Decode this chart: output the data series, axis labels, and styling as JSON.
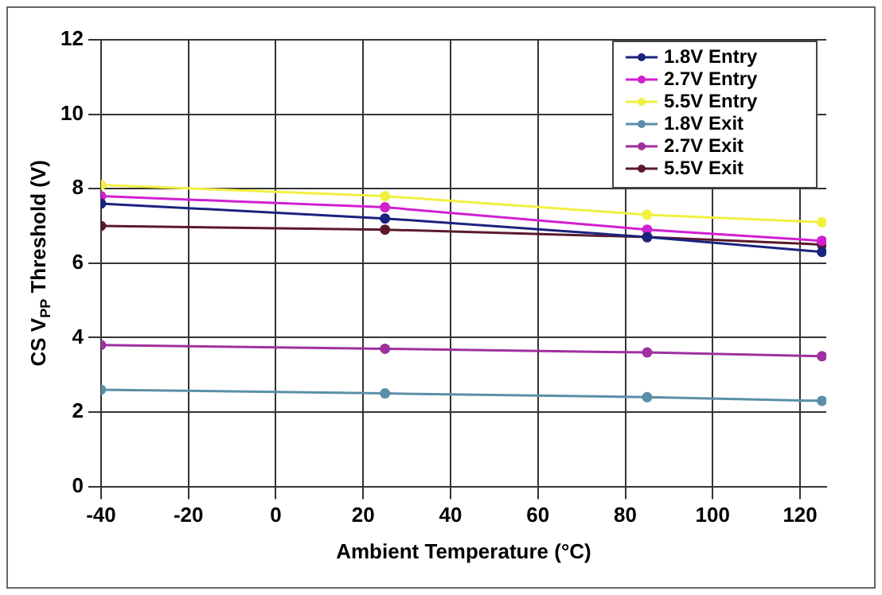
{
  "chart_data": {
    "type": "line",
    "xlabel": "Ambient Temperature (°C)",
    "ylabel": "CS V$_{PP}$ Threshold (V)",
    "x": [
      -40,
      25,
      85,
      125
    ],
    "series": [
      {
        "name": "1.8V Entry",
        "color": "#1a237e",
        "values": [
          7.6,
          7.2,
          6.7,
          6.3
        ]
      },
      {
        "name": "2.7V Entry",
        "color": "#d020d0",
        "values": [
          7.8,
          7.5,
          6.9,
          6.6
        ]
      },
      {
        "name": "5.5V Entry",
        "color": "#f0f040",
        "values": [
          8.1,
          7.8,
          7.3,
          7.1
        ]
      },
      {
        "name": "1.8V Exit",
        "color": "#5a8fa8",
        "values": [
          2.6,
          2.5,
          2.4,
          2.3
        ]
      },
      {
        "name": "2.7V Exit",
        "color": "#a030a0",
        "values": [
          3.8,
          3.7,
          3.6,
          3.5
        ]
      },
      {
        "name": "5.5V Exit",
        "color": "#5a1a2a",
        "values": [
          7.0,
          6.9,
          6.7,
          6.5
        ]
      }
    ],
    "xlim": [
      -40,
      126
    ],
    "xticks": [
      -40,
      -20,
      0,
      20,
      40,
      60,
      80,
      100,
      120
    ],
    "ylim": [
      0,
      12
    ],
    "yticks": [
      0,
      2,
      4,
      6,
      8,
      10,
      12
    ],
    "grid": true,
    "legend": "top right",
    "marker": "circle",
    "line_style": "solid"
  }
}
